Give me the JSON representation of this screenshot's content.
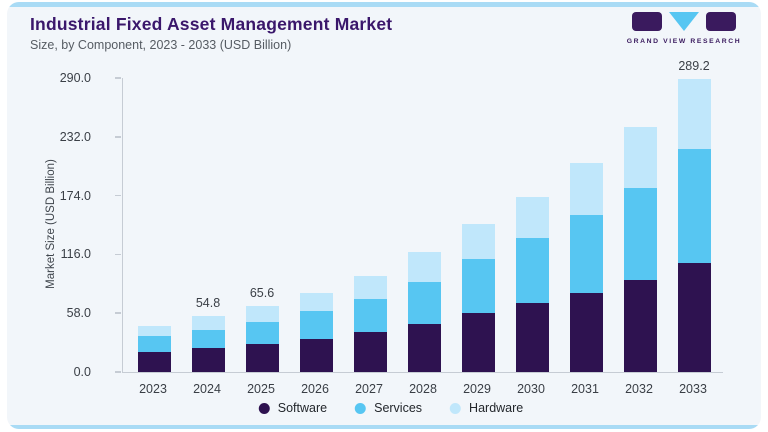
{
  "header": {
    "title": "Industrial Fixed Asset Management Market",
    "subtitle": "Size, by Component, 2023 - 2033 (USD Billion)"
  },
  "logo": {
    "text": "GRAND VIEW RESEARCH"
  },
  "colors": {
    "accent_strip": "#a9dbf5",
    "card_background": "#f2f6fa",
    "title_text": "#3a176b",
    "logo_purple": "#3a1a5e",
    "software": "#2e1250",
    "services": "#57c6f2",
    "hardware": "#c0e7fb",
    "axis_line": "#c6ccd4",
    "tick_text": "#3a3f46"
  },
  "chart_data": {
    "type": "bar",
    "stacked": true,
    "title": "Industrial Fixed Asset Management Market",
    "subtitle": "Size, by Component, 2023 - 2033 (USD Billion)",
    "xlabel": "",
    "ylabel": "Market Size (USD Billion)",
    "ylim": [
      0,
      290
    ],
    "ytick_labels": [
      "0.0",
      "58.0",
      "116.0",
      "174.0",
      "232.0",
      "290.0"
    ],
    "ytick_values": [
      0,
      58,
      116,
      174,
      232,
      290
    ],
    "grid": false,
    "legend_position": "bottom",
    "categories": [
      "2023",
      "2024",
      "2025",
      "2026",
      "2027",
      "2028",
      "2029",
      "2030",
      "2031",
      "2032",
      "2033"
    ],
    "series": [
      {
        "name": "Software",
        "color": "#2e1250",
        "values": [
          20.0,
          24.0,
          27.5,
          33.0,
          39.0,
          47.0,
          58.0,
          68.0,
          78.0,
          91.0,
          108.0
        ]
      },
      {
        "name": "Services",
        "color": "#57c6f2",
        "values": [
          15.5,
          17.0,
          22.0,
          27.0,
          33.0,
          42.0,
          53.0,
          64.0,
          77.0,
          91.0,
          112.0
        ]
      },
      {
        "name": "Hardware",
        "color": "#c0e7fb",
        "values": [
          10.0,
          13.8,
          16.1,
          18.0,
          23.0,
          29.0,
          35.0,
          41.0,
          51.0,
          60.0,
          69.2
        ]
      }
    ],
    "totals": [
      45.5,
      54.8,
      65.6,
      78.0,
      95.0,
      118.0,
      146.0,
      173.0,
      206.0,
      242.0,
      289.2
    ],
    "bar_labels": [
      "",
      "54.8",
      "65.6",
      "",
      "",
      "",
      "",
      "",
      "",
      "",
      "289.2"
    ]
  }
}
